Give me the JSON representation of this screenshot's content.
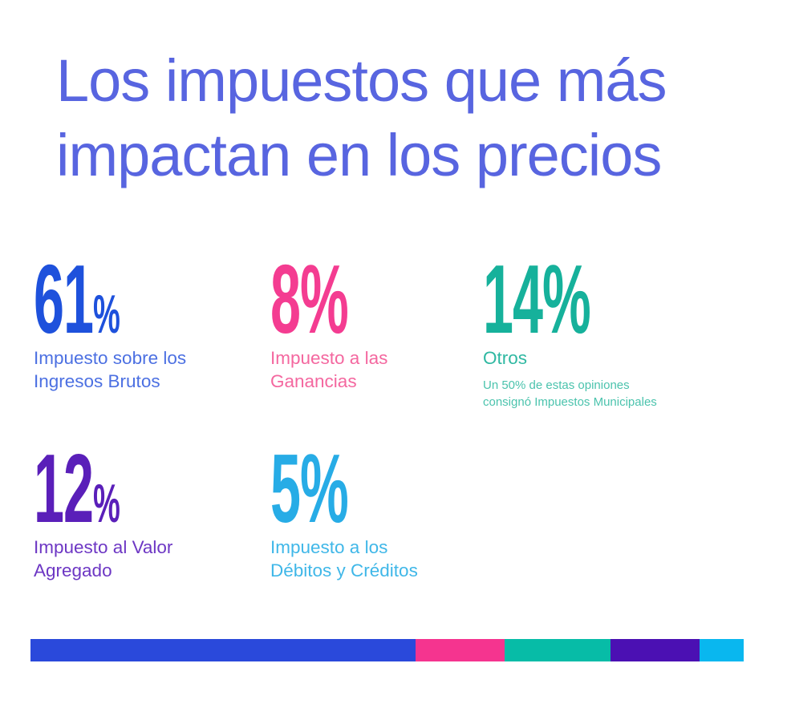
{
  "title": {
    "lines": [
      "Los impuestos que más",
      "impactan en los precios"
    ],
    "color": "#5865E0"
  },
  "stats": [
    {
      "id": "ingresos-brutos",
      "value": "61",
      "suffix": "%",
      "label_lines": [
        "Impuesto sobre los",
        "Ingresos Brutos"
      ],
      "number_color": "#1E51DC",
      "label_color": "#4C70E2"
    },
    {
      "id": "ganancias",
      "value": "8",
      "suffix": "%",
      "label_lines": [
        "Impuesto a las",
        "Ganancias"
      ],
      "number_color": "#F43C91",
      "label_color": "#F4679F"
    },
    {
      "id": "otros",
      "value": "14",
      "suffix": "%",
      "label_lines": [
        "Otros"
      ],
      "note_lines": [
        "Un 50% de estas opiniones",
        "consignó Impuestos Municipales"
      ],
      "number_color": "#16B19B",
      "label_color": "#2FB8A2",
      "note_color": "#4BC3AD"
    },
    {
      "id": "iva",
      "value": "12",
      "suffix": "%",
      "label_lines": [
        "Impuesto al Valor",
        "Agregado"
      ],
      "number_color": "#5A1FB9",
      "label_color": "#6D37C4"
    },
    {
      "id": "debitos-creditos",
      "value": "5",
      "suffix": "%",
      "label_lines": [
        "Impuesto a los",
        "Débitos y Créditos"
      ],
      "number_color": "#27ACE6",
      "label_color": "#3FB7E8"
    }
  ],
  "bar": {
    "segments": [
      {
        "id": "ingresos-brutos",
        "label": "Impuesto sobre los Ingresos Brutos",
        "color": "#2A49DB",
        "width_pct": 54.0
      },
      {
        "id": "ganancias",
        "label": "Impuesto a las Ganancias",
        "color": "#F5348F",
        "width_pct": 12.5
      },
      {
        "id": "otros",
        "label": "Otros",
        "color": "#07BCA7",
        "width_pct": 14.8
      },
      {
        "id": "iva",
        "label": "Impuesto al Valor Agregado",
        "color": "#4B10B3",
        "width_pct": 12.5
      },
      {
        "id": "debitos-creditos",
        "label": "Impuesto a los Débitos y Créditos",
        "color": "#09B7EF",
        "width_pct": 6.2
      }
    ]
  },
  "chart_data": {
    "type": "bar",
    "subtype": "percentage-infographic-with-stacked-bar",
    "title": "Los impuestos que más impactan en los precios",
    "categories": [
      "Impuesto sobre los Ingresos Brutos",
      "Impuesto a las Ganancias",
      "Otros",
      "Impuesto al Valor Agregado",
      "Impuesto a los Débitos y Créditos"
    ],
    "values": [
      61,
      8,
      14,
      12,
      5
    ],
    "colors": [
      "#1E51DC",
      "#F43C91",
      "#16B19B",
      "#5A1FB9",
      "#27ACE6"
    ],
    "annotation": "Un 50% de estas opiniones consignó Impuestos Municipales",
    "bar_segment_widths_pct": [
      54.0,
      12.5,
      14.8,
      12.5,
      6.2
    ],
    "legend_position": "none",
    "grid": false
  }
}
